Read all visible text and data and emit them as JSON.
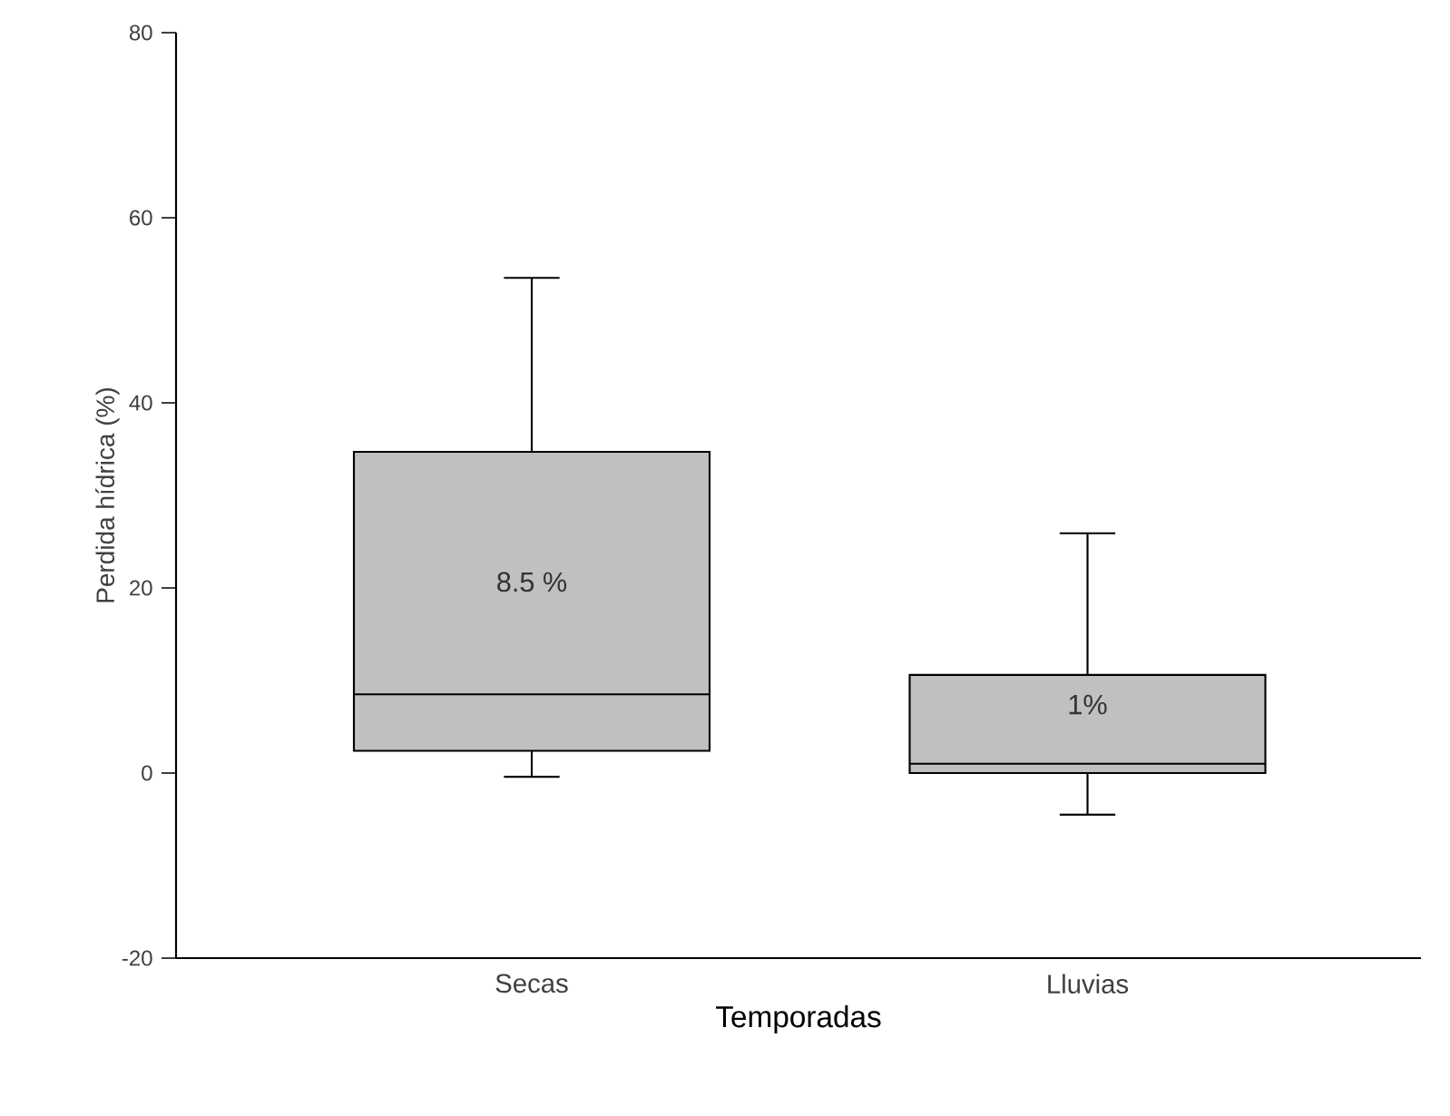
{
  "chart_data": {
    "type": "box",
    "xlabel": "Temporadas",
    "ylabel": "Perdida hídrica (%)",
    "categories": [
      "Secas",
      "Lluvias"
    ],
    "color": "#c0c0c0",
    "boxes": [
      {
        "low": -0.4,
        "q1": 2.4,
        "median": 8.5,
        "q3": 34.7,
        "high": 53.5
      },
      {
        "low": -4.5,
        "q1": 0,
        "median": 1,
        "q3": 10.6,
        "high": 25.9
      }
    ],
    "ylim": [
      -20,
      80
    ],
    "yticks": [
      -20,
      0,
      20,
      40,
      60,
      80
    ],
    "annotations": [
      "8.5 %",
      "1%"
    ]
  }
}
